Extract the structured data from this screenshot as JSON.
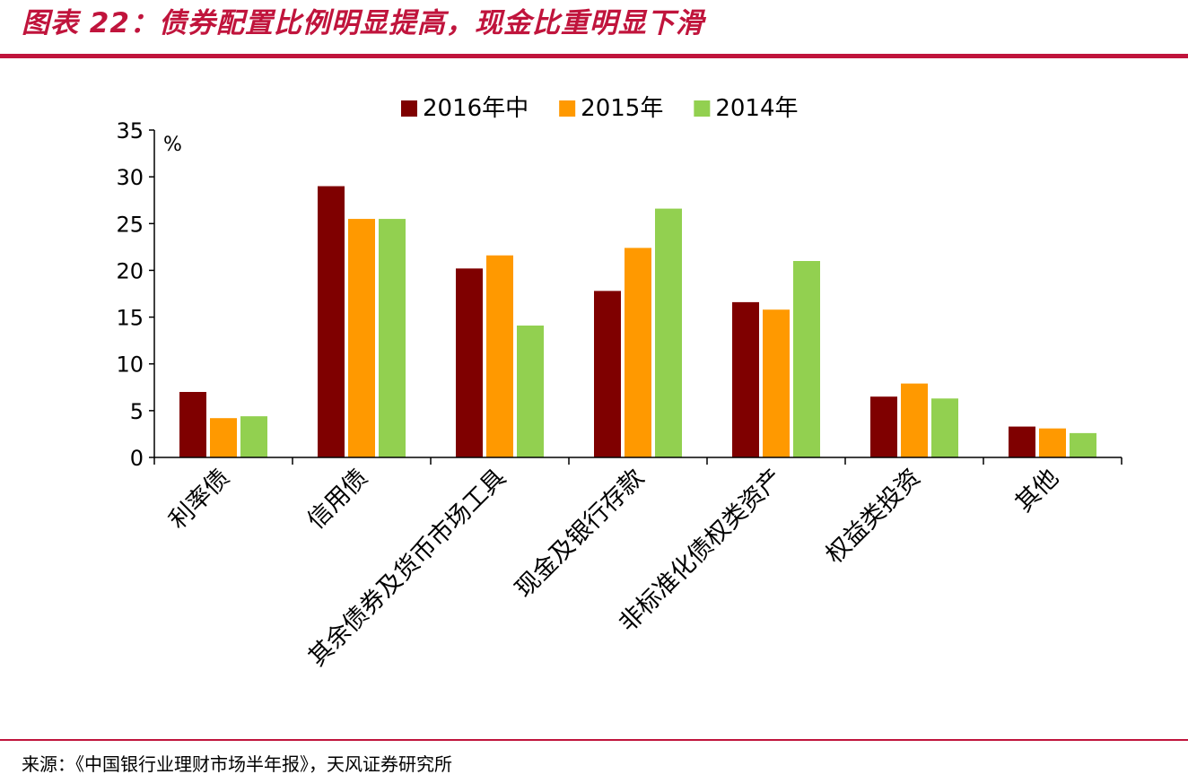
{
  "header": {
    "title": "图表 22：债券配置比例明显提高，现金比重明显下滑"
  },
  "footer": {
    "source": "来源：《中国银行业理财市场半年报》，天风证券研究所"
  },
  "colors": {
    "brand_red": "#c0143c",
    "series_2016H1": "#7f0000",
    "series_2015": "#ff9900",
    "series_2014": "#92d050"
  },
  "chart_data": {
    "type": "bar",
    "unit_label": "%",
    "categories": [
      "利率债",
      "信用债",
      "其余债券及货币市场工具",
      "现金及银行存款",
      "非标准化债权类资产",
      "权益类投资",
      "其他"
    ],
    "series": [
      {
        "name": "2016年中",
        "color": "#7f0000",
        "values": [
          7.0,
          29.0,
          20.2,
          17.8,
          16.6,
          6.5,
          3.3
        ]
      },
      {
        "name": "2015年",
        "color": "#ff9900",
        "values": [
          4.2,
          25.5,
          21.6,
          22.4,
          15.8,
          7.9,
          3.1
        ]
      },
      {
        "name": "2014年",
        "color": "#92d050",
        "values": [
          4.4,
          25.5,
          14.1,
          26.6,
          21.0,
          6.3,
          2.6
        ]
      }
    ],
    "ylim": [
      0,
      35
    ],
    "yticks": [
      0,
      5,
      10,
      15,
      20,
      25,
      30,
      35
    ],
    "legend_position": "top-center",
    "grid": false
  }
}
